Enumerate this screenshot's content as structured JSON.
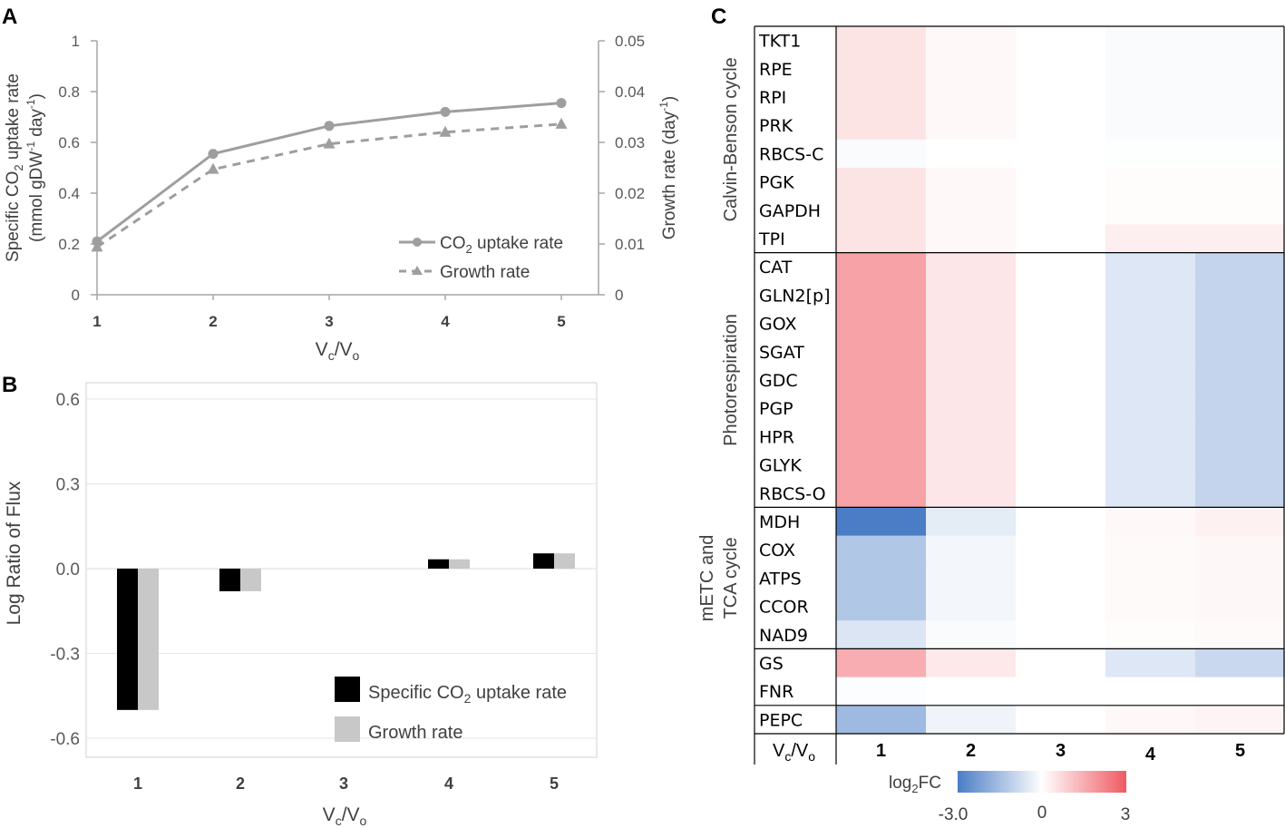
{
  "panel_labels": {
    "a": "A",
    "b": "B",
    "c": "C"
  },
  "colors": {
    "co2_line": "#9e9e9e",
    "growth_line": "#9e9e9e",
    "bar_co2": "#000000",
    "bar_growth": "#c8c8c8",
    "axis": "#a6a6a6",
    "grid": "#e6e6e6",
    "tick_text": "#595959",
    "heat_neg": "#4a7dc6",
    "heat_mid": "#ffffff",
    "heat_pos": "#ef5a62"
  },
  "chart_data": [
    {
      "id": "A",
      "type": "line",
      "x": [
        1,
        2,
        3,
        4,
        5
      ],
      "xlabel": {
        "main": "V",
        "sub1": "c",
        "slash": "/V",
        "sub2": "o"
      },
      "xticks": [
        "1",
        "2",
        "3",
        "4",
        "5"
      ],
      "ylim": [
        0,
        1
      ],
      "yticks": [
        "0",
        "0.2",
        "0.4",
        "0.6",
        "0.8",
        "1"
      ],
      "y2lim": [
        0,
        0.05
      ],
      "y2ticks": [
        "0",
        "0.01",
        "0.02",
        "0.03",
        "0.04",
        "0.05"
      ],
      "ylabel_line1": {
        "a": "Specific CO",
        "sub": "2",
        "b": " uptake rate"
      },
      "ylabel_line2": {
        "a": "(mmol gDW",
        "sup1": "-1",
        "b": " day",
        "sup2": "-1",
        "c": ")"
      },
      "y2label": {
        "a": "Growth rate (day",
        "sup": "-1",
        "b": ")"
      },
      "series": [
        {
          "name": "CO2 uptake rate",
          "legend_a": "CO",
          "legend_sub": "2",
          "legend_b": " uptake rate",
          "axis": "left",
          "values": [
            0.21,
            0.555,
            0.665,
            0.72,
            0.755
          ],
          "marker": "circle",
          "dash": false
        },
        {
          "name": "Growth rate",
          "legend_a": "Growth rate",
          "axis": "right",
          "values": [
            0.0094,
            0.0247,
            0.0297,
            0.032,
            0.0336
          ],
          "marker": "triangle",
          "dash": true
        }
      ]
    },
    {
      "id": "B",
      "type": "bar",
      "categories": [
        "1",
        "2",
        "3",
        "4",
        "5"
      ],
      "ylim": [
        -0.65,
        0.7
      ],
      "yticks": [
        -0.6,
        -0.3,
        0.0,
        0.3,
        0.6
      ],
      "ytick_labels": [
        "-0.6",
        "-0.3",
        "0.0",
        "0.3",
        "0.6"
      ],
      "ylabel": "Log Ratio of Flux",
      "xlabel": {
        "main": "V",
        "sub1": "c",
        "slash": "/V",
        "sub2": "o"
      },
      "series": [
        {
          "name": "Specific CO2 uptake rate",
          "legend_a": "Specific CO",
          "legend_sub": "2",
          "legend_b": " uptake rate",
          "values": [
            -0.5,
            -0.08,
            0.0,
            0.033,
            0.054
          ]
        },
        {
          "name": "Growth rate",
          "legend_a": "Growth rate",
          "values": [
            -0.5,
            -0.08,
            0.0,
            0.033,
            0.054
          ]
        }
      ]
    },
    {
      "id": "C",
      "type": "heatmap",
      "columns": [
        "1",
        "2",
        "3",
        "4",
        "5"
      ],
      "column_axis_label": {
        "main": "V",
        "sub1": "c",
        "slash": "/V",
        "sub2": "o"
      },
      "color_range": [
        -3,
        3
      ],
      "colorbar_label": {
        "a": "log",
        "sub": "2",
        "b": "FC"
      },
      "colorbar_ticks": [
        "-3.0",
        "0",
        "3"
      ],
      "groups": [
        {
          "label": "Calvin-Benson cycle",
          "label_lines": [
            "Calvin-Benson cycle"
          ],
          "rows": [
            {
              "gene": "TKT1",
              "values": [
                0.5,
                0.12,
                0.0,
                -0.1,
                -0.1
              ]
            },
            {
              "gene": "RPE",
              "values": [
                0.5,
                0.12,
                0.0,
                -0.1,
                -0.1
              ]
            },
            {
              "gene": "RPI",
              "values": [
                0.5,
                0.12,
                0.0,
                -0.1,
                -0.1
              ]
            },
            {
              "gene": "PRK",
              "values": [
                0.5,
                0.12,
                0.0,
                -0.1,
                -0.1
              ]
            },
            {
              "gene": "RBCS-C",
              "values": [
                -0.1,
                0.0,
                0.0,
                -0.03,
                -0.03
              ]
            },
            {
              "gene": "PGK",
              "values": [
                0.5,
                0.12,
                0.0,
                0.05,
                0.05
              ]
            },
            {
              "gene": "GAPDH",
              "values": [
                0.5,
                0.12,
                0.0,
                0.05,
                0.05
              ]
            },
            {
              "gene": "TPI",
              "values": [
                0.5,
                0.12,
                0.0,
                0.3,
                0.3
              ]
            }
          ]
        },
        {
          "label": "Photorespiration",
          "label_lines": [
            "Photorespiration"
          ],
          "rows": [
            {
              "gene": "CAT",
              "values": [
                1.7,
                0.45,
                0.0,
                -0.55,
                -1.0
              ]
            },
            {
              "gene": "GLN2[p]",
              "values": [
                1.7,
                0.45,
                0.0,
                -0.55,
                -1.0
              ]
            },
            {
              "gene": "GOX",
              "values": [
                1.7,
                0.45,
                0.0,
                -0.55,
                -1.0
              ]
            },
            {
              "gene": "SGAT",
              "values": [
                1.7,
                0.45,
                0.0,
                -0.55,
                -1.0
              ]
            },
            {
              "gene": "GDC",
              "values": [
                1.7,
                0.45,
                0.0,
                -0.55,
                -1.0
              ]
            },
            {
              "gene": "PGP",
              "values": [
                1.7,
                0.45,
                0.0,
                -0.55,
                -1.0
              ]
            },
            {
              "gene": "HPR",
              "values": [
                1.7,
                0.45,
                0.0,
                -0.55,
                -1.0
              ]
            },
            {
              "gene": "GLYK",
              "values": [
                1.7,
                0.45,
                0.0,
                -0.55,
                -1.0
              ]
            },
            {
              "gene": "RBCS-O",
              "values": [
                1.7,
                0.45,
                0.0,
                -0.55,
                -1.0
              ]
            }
          ]
        },
        {
          "label": "mETC and TCA cycle",
          "label_lines": [
            "mETC and",
            "TCA cycle"
          ],
          "rows": [
            {
              "gene": "MDH",
              "values": [
                -3.0,
                -0.45,
                0.0,
                0.12,
                0.25
              ]
            },
            {
              "gene": "COX",
              "values": [
                -1.3,
                -0.2,
                0.0,
                0.1,
                0.15
              ]
            },
            {
              "gene": "ATPS",
              "values": [
                -1.3,
                -0.2,
                0.0,
                0.1,
                0.15
              ]
            },
            {
              "gene": "CCOR",
              "values": [
                -1.3,
                -0.2,
                0.0,
                0.1,
                0.15
              ]
            },
            {
              "gene": "NAD9",
              "values": [
                -0.6,
                -0.1,
                0.0,
                0.05,
                0.1
              ]
            }
          ]
        },
        {
          "label": "",
          "label_lines": [],
          "rows": [
            {
              "gene": "GS",
              "values": [
                1.5,
                0.4,
                0.0,
                -0.55,
                -0.9
              ]
            },
            {
              "gene": "FNR",
              "values": [
                -0.05,
                0.0,
                0.0,
                0.0,
                0.0
              ]
            }
          ]
        },
        {
          "label": "",
          "label_lines": [],
          "rows": [
            {
              "gene": "PEPC",
              "values": [
                -1.6,
                -0.25,
                0.0,
                0.12,
                0.2
              ]
            }
          ]
        }
      ]
    }
  ]
}
